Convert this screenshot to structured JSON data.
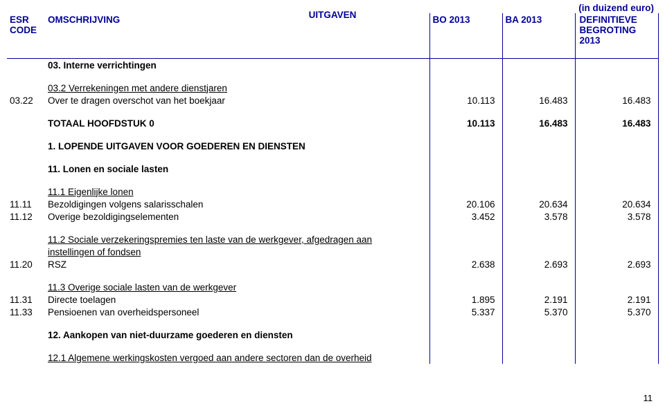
{
  "meta": {
    "unit_note": "(in duizend euro)",
    "title_center": "UITGAVEN",
    "page_number": "11"
  },
  "header": {
    "code_line1": "ESR",
    "code_line2": "CODE",
    "desc": "OMSCHRIJVING",
    "bo": "BO 2013",
    "ba": "BA 2013",
    "def_line1": "DEFINITIEVE",
    "def_line2": "BEGROTING",
    "def_line3": "2013"
  },
  "rows": {
    "r03": {
      "desc": "03. Interne verrichtingen"
    },
    "r03_2": {
      "desc": "03.2 Verrekeningen met andere dienstjaren"
    },
    "r03_22": {
      "code": "03.22",
      "desc": "Over te dragen overschot van het boekjaar",
      "bo": "10.113",
      "ba": "16.483",
      "def": "16.483"
    },
    "tot0": {
      "desc": "TOTAAL HOOFDSTUK 0",
      "bo": "10.113",
      "ba": "16.483",
      "def": "16.483"
    },
    "sec1": {
      "desc": "1. LOPENDE UITGAVEN VOOR GOEDEREN EN DIENSTEN"
    },
    "r11": {
      "desc": "11. Lonen en sociale lasten"
    },
    "r11_1": {
      "desc": "11.1 Eigenlijke lonen"
    },
    "r11_11": {
      "code": "11.11",
      "desc": "Bezoldigingen volgens salarisschalen",
      "bo": "20.106",
      "ba": "20.634",
      "def": "20.634"
    },
    "r11_12": {
      "code": "11.12",
      "desc": "Overige bezoldigingselementen",
      "bo": "3.452",
      "ba": "3.578",
      "def": "3.578"
    },
    "r11_2a": {
      "desc": "11.2 Sociale verzekeringspremies ten laste van de werkgever, afgedragen aan"
    },
    "r11_2b": {
      "desc": "instellingen of fondsen"
    },
    "r11_20": {
      "code": "11.20",
      "desc": "RSZ",
      "bo": "2.638",
      "ba": "2.693",
      "def": "2.693"
    },
    "r11_3": {
      "desc": "11.3 Overige sociale lasten van de werkgever"
    },
    "r11_31": {
      "code": "11.31",
      "desc": "Directe toelagen",
      "bo": "1.895",
      "ba": "2.191",
      "def": "2.191"
    },
    "r11_33": {
      "code": "11.33",
      "desc": "Pensioenen van overheidspersoneel",
      "bo": "5.337",
      "ba": "5.370",
      "def": "5.370"
    },
    "r12": {
      "desc": "12. Aankopen van niet-duurzame goederen en diensten"
    },
    "r12_1": {
      "desc": "12.1 Algemene werkingskosten vergoed aan andere sectoren dan de overheid"
    }
  }
}
